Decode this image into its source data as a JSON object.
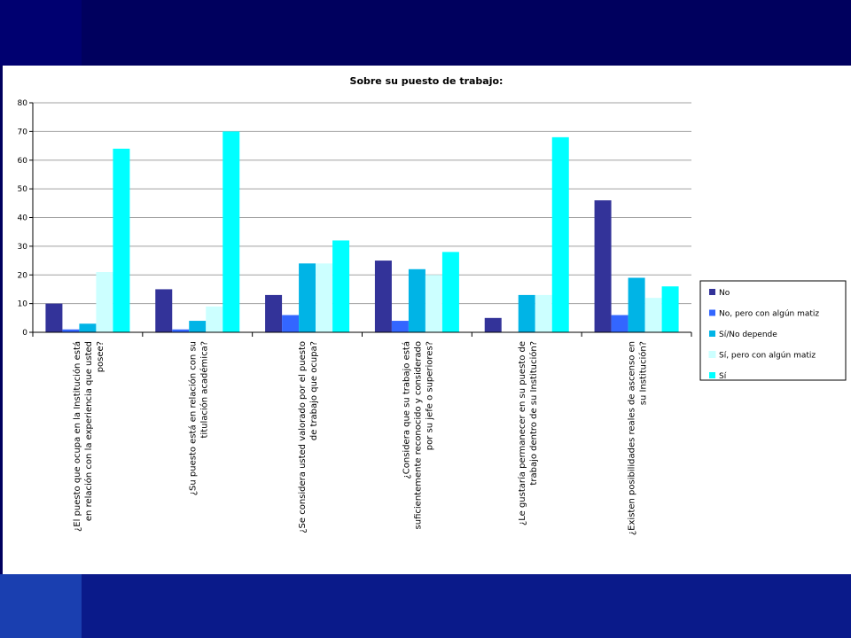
{
  "chart_data": {
    "type": "bar",
    "title": "Sobre su puesto de trabajo:",
    "xlabel": "",
    "ylabel": "",
    "ylim": [
      0,
      80
    ],
    "yticks": [
      0,
      10,
      20,
      30,
      40,
      50,
      60,
      70,
      80
    ],
    "grid": true,
    "legend_position": "right",
    "categories": [
      [
        "¿El puesto que ocupa en la Institución está",
        "en relación con la experiencia que usted",
        "posee?"
      ],
      [
        "¿Su puesto está en relación con su",
        "titulación académica?"
      ],
      [
        "¿Se considera usted valorado por el puesto",
        "de trabajo que ocupa?"
      ],
      [
        "¿Considera que su trabajo está",
        "suficientemente reconocido y considerado",
        "por su jefe o superiores?"
      ],
      [
        "¿Le gustaría permanecer en su puesto de",
        "trabajo dentro de su Institución?"
      ],
      [
        "¿Existen posibilidades reales de ascenso en",
        "su Institución?"
      ]
    ],
    "series": [
      {
        "name": "No",
        "color": "#333399",
        "values": [
          10,
          15,
          13,
          25,
          5,
          46
        ]
      },
      {
        "name": "No, pero con algún matiz",
        "color": "#3366ff",
        "values": [
          1,
          1,
          6,
          4,
          0,
          6
        ]
      },
      {
        "name": "Sí/No depende",
        "color": "#00b4e6",
        "values": [
          3,
          4,
          24,
          22,
          13,
          19
        ]
      },
      {
        "name": "Sí, pero con algún matiz",
        "color": "#ccffff",
        "values": [
          21,
          9,
          24,
          20,
          13,
          12
        ]
      },
      {
        "name": "Sí",
        "color": "#00ffff",
        "values": [
          64,
          70,
          32,
          28,
          68,
          16
        ]
      }
    ]
  }
}
